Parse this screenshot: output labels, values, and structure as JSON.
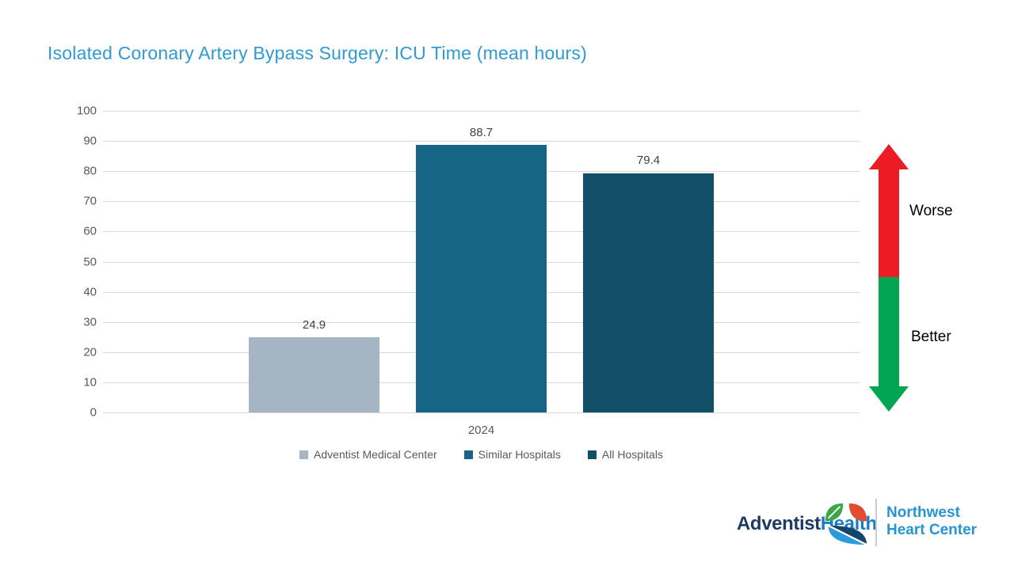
{
  "title": "Isolated Coronary Artery Bypass Surgery: ICU Time (mean hours)",
  "chart_data": {
    "type": "bar",
    "categories": [
      "2024"
    ],
    "series": [
      {
        "name": "Adventist Medical Center",
        "values": [
          24.9
        ],
        "color": "#A6B5C4"
      },
      {
        "name": "Similar Hospitals",
        "values": [
          88.7
        ],
        "color": "#176586"
      },
      {
        "name": "All Hospitals",
        "values": [
          79.4
        ],
        "color": "#114E68"
      }
    ],
    "ylim": [
      0,
      100
    ],
    "yticks": [
      0,
      10,
      20,
      30,
      40,
      50,
      60,
      70,
      80,
      90,
      100
    ],
    "grid": true,
    "legend_position": "bottom",
    "gridline_color": "#D9D9D9"
  },
  "annotations": {
    "worse_label": "Worse",
    "better_label": "Better",
    "worse_color": "#EB1C24",
    "better_color": "#00A651"
  },
  "footer": {
    "brand_primary": "Adventist",
    "brand_secondary": "Health",
    "org_line1": "Northwest",
    "org_line2": "Heart Center"
  }
}
